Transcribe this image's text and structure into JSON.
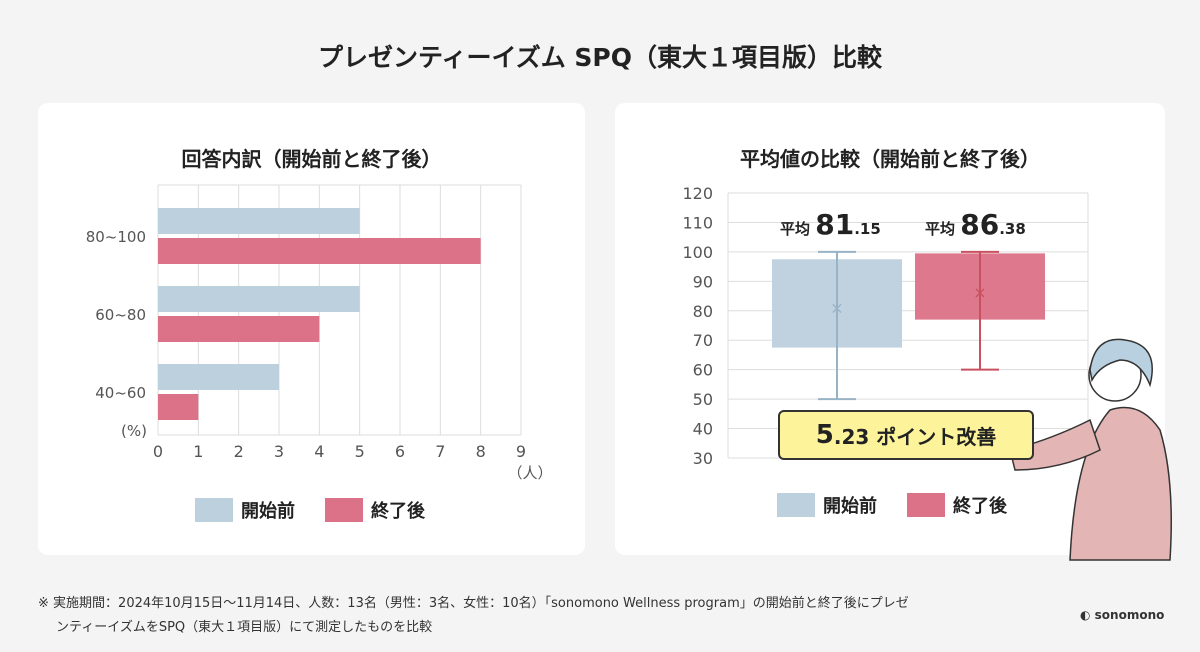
{
  "title": "プレゼンティーイズム SPQ（東大１項目版）比較",
  "colors": {
    "before": "#bdd0de",
    "after": "#dc7287"
  },
  "chart_data": [
    {
      "type": "bar",
      "orientation": "horizontal",
      "title": "回答内訳（開始前と終了後）",
      "categories": [
        "80~100",
        "60~80",
        "40~60"
      ],
      "category_axis_label": "(%)",
      "xlabel": "（人）",
      "xlim": [
        0,
        9
      ],
      "xticks": [
        "0",
        "1",
        "2",
        "3",
        "4",
        "5",
        "6",
        "7",
        "8",
        "9"
      ],
      "series": [
        {
          "name": "開始前",
          "values": [
            5,
            5,
            3
          ]
        },
        {
          "name": "終了後",
          "values": [
            8,
            4,
            1
          ]
        }
      ],
      "legend": "bottom",
      "grid": true
    },
    {
      "type": "box",
      "title": "平均値の比較（開始前と終了後）",
      "ylim": [
        30,
        120
      ],
      "yticks": [
        "30",
        "40",
        "50",
        "60",
        "70",
        "80",
        "90",
        "100",
        "110",
        "120"
      ],
      "series": [
        {
          "name": "開始前",
          "min": 50,
          "q1": 67.5,
          "q3": 97.5,
          "max": 100,
          "mean": 81.15,
          "mean_label_prefix": "平均",
          "mean_int": "81",
          "mean_dec": ".15"
        },
        {
          "name": "終了後",
          "min": 60,
          "q1": 77,
          "q3": 99.5,
          "max": 100,
          "mean": 86.38,
          "mean_label_prefix": "平均",
          "mean_int": "86",
          "mean_dec": ".38"
        }
      ],
      "annotation": {
        "big": "5",
        "rest": ".23 ポイント改善"
      },
      "legend": "bottom",
      "grid": true
    }
  ],
  "note": {
    "mark": "※",
    "line1": "実施期間：2024年10月15日〜11月14日、人数：13名（男性：3名、女性：10名）「sonomono Wellness program」の開始前と終了後にプレゼ",
    "line2": "ンティーイズムをSPQ（東大１項目版）にて測定したものを比較"
  },
  "logo": "sonomono"
}
